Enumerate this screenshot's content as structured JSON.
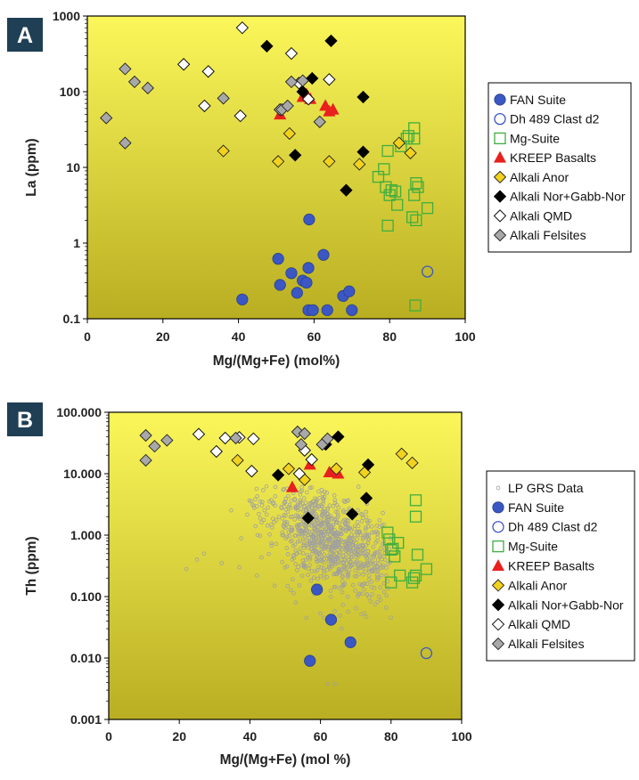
{
  "colors": {
    "panel_label_bg": "#1f3f55",
    "panel_label_text": "#ffffff",
    "plot_top": "#fbf75a",
    "plot_bottom": "#b9ae22",
    "fan": "#3a57c4",
    "dh489": "#3a57c4",
    "mg": "#3fae3f",
    "kreep": "#e8201e",
    "anor": "#f2d21c",
    "norgabb": "#000000",
    "qmd": "#ffffff",
    "felsite": "#a8a8a8",
    "grs": "#a0a0a0"
  },
  "chart_data": [
    {
      "panel": "A",
      "type": "scatter",
      "xlabel": "Mg/(Mg+Fe) (mol%)",
      "ylabel": "La (ppm)",
      "xlim": [
        0,
        100
      ],
      "ylim": [
        0.1,
        1000
      ],
      "yscale": "log",
      "xticks": [
        "0",
        "20",
        "40",
        "60",
        "80",
        "100"
      ],
      "yticks": [
        "0.1",
        "1",
        "10",
        "100",
        "1000"
      ],
      "grid": false,
      "legend_position": "right",
      "series": [
        {
          "name": "FAN Suite",
          "marker": "circle-filled",
          "color_key": "fan",
          "points": [
            [
              41,
              0.18
            ],
            [
              50.5,
              0.62
            ],
            [
              51,
              0.28
            ],
            [
              54,
              0.4
            ],
            [
              55.5,
              0.22
            ],
            [
              57,
              0.32
            ],
            [
              58,
              0.3
            ],
            [
              58.5,
              0.47
            ],
            [
              58.7,
              2.05
            ],
            [
              58.5,
              0.13
            ],
            [
              59.7,
              0.13
            ],
            [
              62.5,
              0.7
            ],
            [
              63.5,
              0.13
            ],
            [
              67.7,
              0.2
            ],
            [
              69.3,
              0.23
            ],
            [
              70,
              0.13
            ]
          ]
        },
        {
          "name": "Dh 489 Clast d2",
          "marker": "circle-open",
          "color_key": "dh489",
          "points": [
            [
              90,
              0.42
            ]
          ]
        },
        {
          "name": "Mg-Suite",
          "marker": "square-open",
          "color_key": "mg",
          "points": [
            [
              77,
              7.5
            ],
            [
              78.5,
              9.5
            ],
            [
              79,
              5.5
            ],
            [
              80,
              4.3
            ],
            [
              79.5,
              16.5
            ],
            [
              80.5,
              5
            ],
            [
              81.5,
              4.8
            ],
            [
              82,
              3.2
            ],
            [
              83,
              19
            ],
            [
              84.5,
              24
            ],
            [
              85,
              26
            ],
            [
              86,
              2.2
            ],
            [
              86.5,
              33
            ],
            [
              86.5,
              24
            ],
            [
              86.5,
              4.3
            ],
            [
              87,
              6.2
            ],
            [
              87,
              2
            ],
            [
              87.5,
              5.5
            ],
            [
              90,
              2.9
            ],
            [
              79.5,
              1.7
            ],
            [
              86.8,
              0.15
            ]
          ]
        },
        {
          "name": "KREEP Basalts",
          "marker": "triangle",
          "color_key": "kreep",
          "points": [
            [
              51,
              50
            ],
            [
              57,
              85
            ],
            [
              58,
              92
            ],
            [
              59,
              80
            ],
            [
              63,
              65
            ],
            [
              64,
              55
            ],
            [
              65,
              58
            ]
          ]
        },
        {
          "name": "Alkali Anor",
          "marker": "diamond-filled",
          "color_key": "anor",
          "points": [
            [
              36,
              16.5
            ],
            [
              50.5,
              12
            ],
            [
              53.5,
              28
            ],
            [
              64,
              12
            ],
            [
              72,
              11
            ],
            [
              82.5,
              21
            ],
            [
              85.5,
              15.5
            ]
          ]
        },
        {
          "name": "Alkali Nor+Gabb-Nor",
          "marker": "diamond-filled",
          "color_key": "norgabb",
          "points": [
            [
              47.5,
              400
            ],
            [
              55,
              14.5
            ],
            [
              57,
              100
            ],
            [
              59.5,
              150
            ],
            [
              64.5,
              470
            ],
            [
              68.5,
              5
            ],
            [
              73,
              85
            ],
            [
              73,
              16
            ]
          ]
        },
        {
          "name": "Alkali QMD",
          "marker": "diamond-open",
          "color_key": "qmd",
          "points": [
            [
              25.5,
              230
            ],
            [
              31,
              65
            ],
            [
              32,
              185
            ],
            [
              40.5,
              48
            ],
            [
              41,
              700
            ],
            [
              51,
              58
            ],
            [
              54,
              320
            ],
            [
              56,
              130
            ],
            [
              58.5,
              80
            ],
            [
              64,
              145
            ]
          ]
        },
        {
          "name": "Alkali Felsites",
          "marker": "diamond-filled",
          "color_key": "felsite",
          "points": [
            [
              5,
              45
            ],
            [
              10,
              200
            ],
            [
              10,
              21
            ],
            [
              12.5,
              135
            ],
            [
              16,
              112
            ],
            [
              36,
              82
            ],
            [
              51.5,
              58
            ],
            [
              53,
              65
            ],
            [
              54,
              135
            ],
            [
              57,
              140
            ],
            [
              61.5,
              40
            ]
          ]
        }
      ]
    },
    {
      "panel": "B",
      "type": "scatter",
      "xlabel": "Mg/(Mg+Fe) (mol %)",
      "ylabel": "Th (ppm)",
      "xlim": [
        0,
        100
      ],
      "ylim": [
        0.001,
        100
      ],
      "yscale": "log",
      "xticks": [
        "0",
        "20",
        "40",
        "60",
        "80",
        "100"
      ],
      "yticks": [
        "0.001",
        "0.010",
        "0.100",
        "1.000",
        "10.000",
        "100.000"
      ],
      "grid": false,
      "legend_position": "right",
      "series": [
        {
          "name": "LP GRS Data",
          "marker": "circle-small-open",
          "color_key": "grs",
          "cloud": {
            "count": 900,
            "x_mean": 63,
            "x_sd": 9,
            "x_range": [
              22,
              80
            ],
            "logy_mean": -0.1,
            "logy_sd": 0.38,
            "logy_range": [
              -2.4,
              0.8
            ],
            "slope": 0.028
          },
          "points": [
            [
              22,
              0.28
            ],
            [
              25,
              0.4
            ],
            [
              27,
              0.5
            ],
            [
              32,
              0.35
            ],
            [
              37,
              0.3
            ],
            [
              42,
              0.22
            ],
            [
              47,
              0.15
            ],
            [
              53,
              0.08
            ],
            [
              56,
              0.045
            ],
            [
              61,
              0.045
            ],
            [
              62,
              0.0038
            ],
            [
              64,
              0.0038
            ],
            [
              66,
              0.03
            ],
            [
              75,
              0.45
            ],
            [
              78,
              0.8
            ]
          ]
        },
        {
          "name": "FAN Suite",
          "marker": "circle-filled",
          "color_key": "fan",
          "points": [
            [
              57,
              0.009
            ],
            [
              59,
              0.13
            ],
            [
              63,
              0.042
            ],
            [
              68.5,
              0.018
            ]
          ]
        },
        {
          "name": "Dh 489 Clast d2",
          "marker": "circle-open",
          "color_key": "dh489",
          "points": [
            [
              90,
              0.012
            ]
          ]
        },
        {
          "name": "Mg-Suite",
          "marker": "square-open",
          "color_key": "mg",
          "points": [
            [
              79,
              1.1
            ],
            [
              79.5,
              0.85
            ],
            [
              80,
              0.58
            ],
            [
              80.5,
              0.6
            ],
            [
              81,
              0.45
            ],
            [
              82,
              0.75
            ],
            [
              82.5,
              0.22
            ],
            [
              80,
              0.17
            ],
            [
              86,
              0.17
            ],
            [
              86.5,
              0.2
            ],
            [
              87,
              0.22
            ],
            [
              87.5,
              0.48
            ],
            [
              87,
              2
            ],
            [
              87,
              3.7
            ],
            [
              90,
              0.28
            ]
          ]
        },
        {
          "name": "KREEP Basalts",
          "marker": "triangle",
          "color_key": "kreep",
          "points": [
            [
              52,
              6
            ],
            [
              57,
              14
            ],
            [
              62.5,
              10.5
            ],
            [
              64,
              11
            ],
            [
              65,
              10
            ]
          ]
        },
        {
          "name": "Alkali Anor",
          "marker": "diamond-filled",
          "color_key": "anor",
          "points": [
            [
              36.5,
              16.5
            ],
            [
              51,
              12
            ],
            [
              55.5,
              8
            ],
            [
              64.5,
              12
            ],
            [
              72.5,
              10.5
            ],
            [
              83,
              21
            ],
            [
              86,
              15
            ]
          ]
        },
        {
          "name": "Alkali Nor+Gabb-Nor",
          "marker": "diamond-filled",
          "color_key": "norgabb",
          "points": [
            [
              48,
              9.5
            ],
            [
              56.5,
              1.9
            ],
            [
              61.5,
              30
            ],
            [
              65,
              40
            ],
            [
              69,
              2.2
            ],
            [
              73.5,
              14
            ],
            [
              73,
              4
            ]
          ]
        },
        {
          "name": "Alkali QMD",
          "marker": "diamond-open",
          "color_key": "qmd",
          "points": [
            [
              25.5,
              44
            ],
            [
              30.5,
              23
            ],
            [
              33,
              38
            ],
            [
              37,
              39
            ],
            [
              40.5,
              11
            ],
            [
              41,
              37
            ],
            [
              54,
              10
            ],
            [
              55.5,
              24
            ],
            [
              57.5,
              17
            ]
          ]
        },
        {
          "name": "Alkali Felsites",
          "marker": "diamond-filled",
          "color_key": "felsite",
          "points": [
            [
              10.5,
              42
            ],
            [
              10.5,
              16.5
            ],
            [
              13,
              28
            ],
            [
              16.5,
              35
            ],
            [
              36,
              38
            ],
            [
              53.5,
              48
            ],
            [
              55.5,
              45
            ],
            [
              54.5,
              30
            ],
            [
              60.5,
              30
            ],
            [
              62,
              37
            ]
          ]
        }
      ]
    }
  ]
}
